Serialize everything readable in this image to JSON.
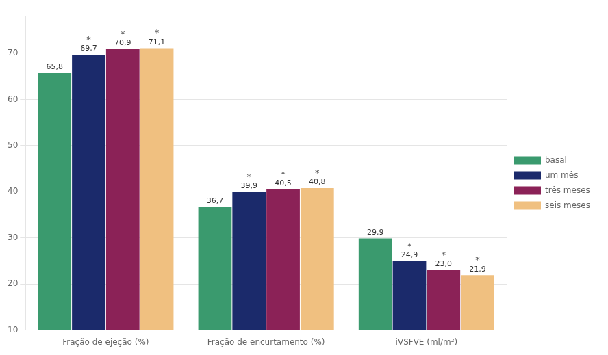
{
  "chart_data": {
    "type": "bar",
    "categories": [
      "Fração de ejeção (%)",
      "Fração de encurtamento (%)",
      "iVSFVE (ml/m²)"
    ],
    "series": [
      {
        "name": "basal",
        "color": "#3a9a6e",
        "values": [
          65.8,
          36.7,
          29.9
        ],
        "value_labels": [
          "65,8",
          "36,7",
          "29,9"
        ]
      },
      {
        "name": "um mês",
        "color": "#1b2a6b",
        "values": [
          69.7,
          39.9,
          24.9
        ],
        "value_labels": [
          "69,7",
          "39,9",
          "24,9"
        ]
      },
      {
        "name": "três meses",
        "color": "#8b2257",
        "values": [
          70.9,
          40.5,
          23.0
        ],
        "value_labels": [
          "70,9",
          "40,5",
          "23,0"
        ]
      },
      {
        "name": "seis meses",
        "color": "#f0c080",
        "values": [
          71.1,
          40.8,
          21.9
        ],
        "value_labels": [
          "71,1",
          "40,8",
          "21,9"
        ]
      }
    ],
    "annotations": [
      {
        "text": "*",
        "series": "um mês",
        "category": "Fração de ejeção (%)"
      },
      {
        "text": "*",
        "series": "um mês",
        "category": "Fração de encurtamento (%)"
      },
      {
        "text": "*",
        "series": "um mês",
        "category": "iVSFVE (ml/m²)"
      },
      {
        "text": "*",
        "series": "três meses",
        "category": "Fração de ejeção (%)"
      },
      {
        "text": "*",
        "series": "três meses",
        "category": "Fração de encurtamento (%)"
      },
      {
        "text": "*",
        "series": "três meses",
        "category": "iVSFVE (ml/m²)"
      },
      {
        "text": "*",
        "series": "seis meses",
        "category": "Fração de ejeção (%)"
      },
      {
        "text": "*",
        "series": "seis meses",
        "category": "Fração de encurtamento (%)"
      },
      {
        "text": "*",
        "series": "seis meses",
        "category": "iVSFVE (ml/m²)"
      }
    ],
    "ylim": [
      10,
      78
    ],
    "yticks": [
      10,
      20,
      30,
      40,
      50,
      60,
      70
    ],
    "grid": true,
    "legend": "right",
    "data_labels": true
  }
}
